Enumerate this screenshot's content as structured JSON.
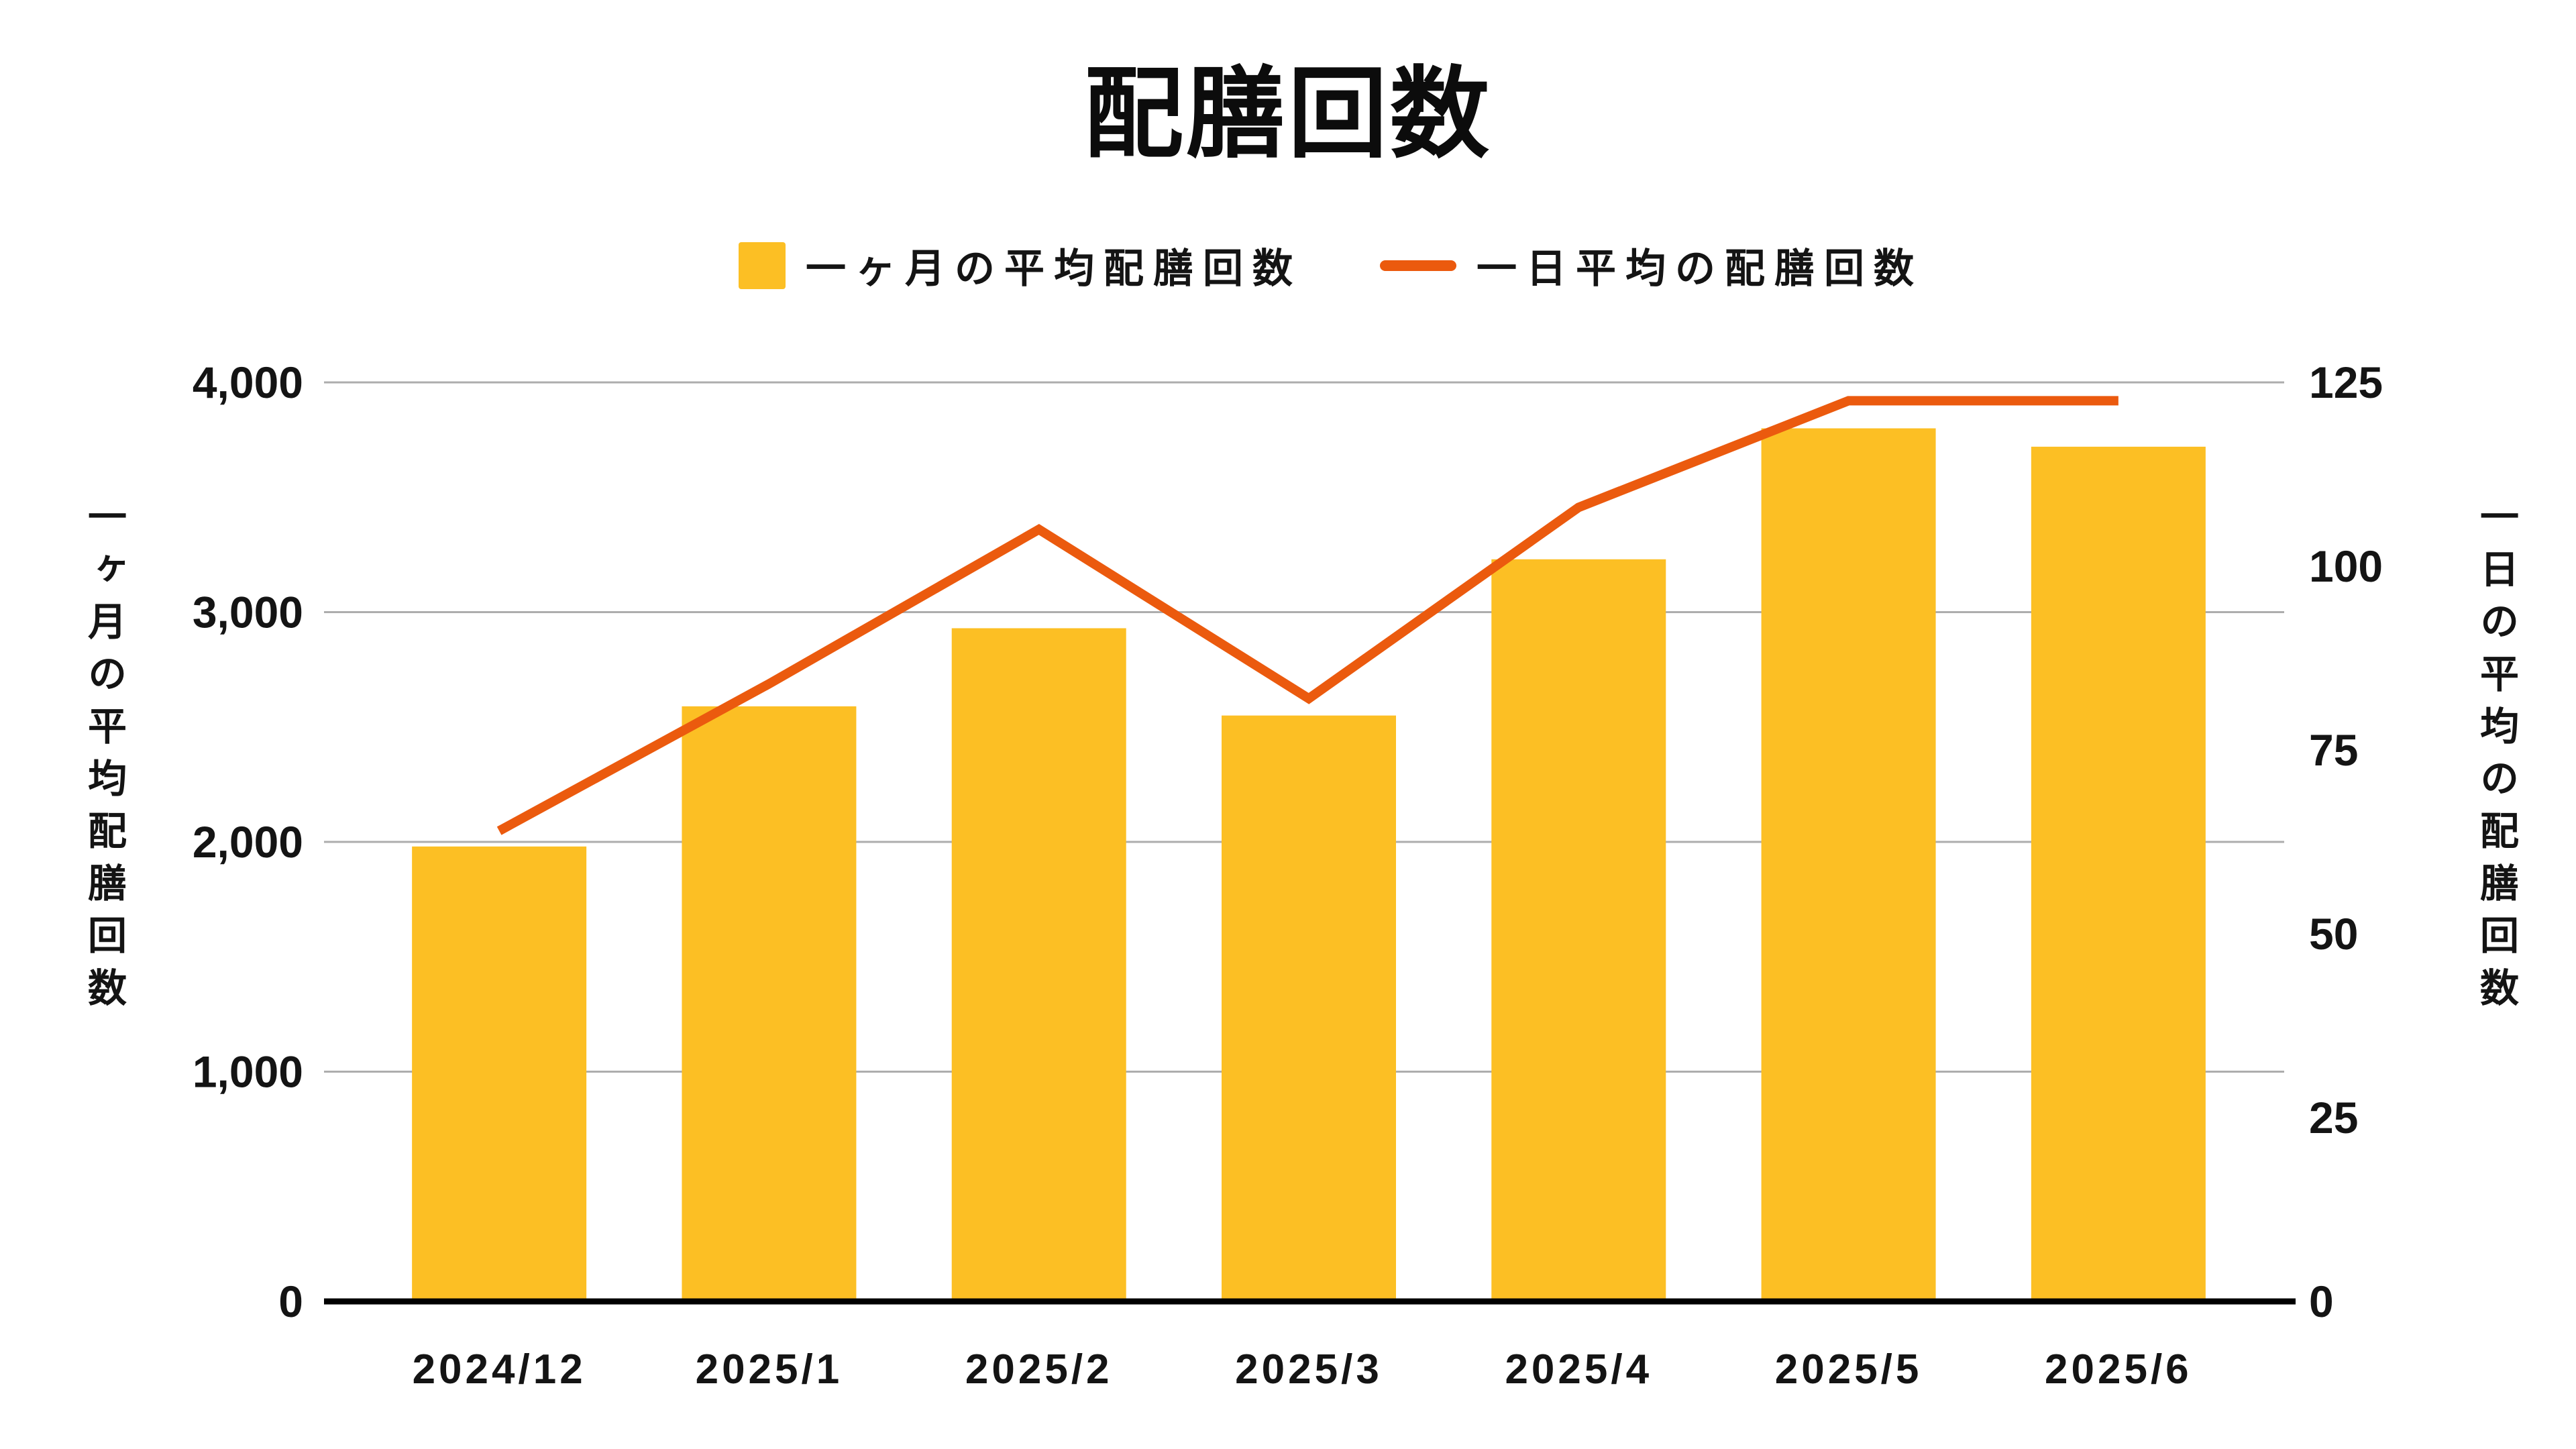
{
  "title": "配膳回数",
  "legend": {
    "bar_label": "一ヶ月の平均配膳回数",
    "line_label": "一日平均の配膳回数"
  },
  "left_axis": {
    "title": "一ヶ月の平均配膳回数",
    "tick_labels": [
      "0",
      "1,000",
      "2,000",
      "3,000",
      "4,000"
    ],
    "tick_values": [
      0,
      1000,
      2000,
      3000,
      4000
    ],
    "max": 4000
  },
  "right_axis": {
    "title": "一日の平均の配膳回数",
    "tick_labels": [
      "0",
      "25",
      "50",
      "75",
      "100",
      "125"
    ],
    "tick_values": [
      0,
      25,
      50,
      75,
      100,
      125
    ],
    "max": 125
  },
  "colors": {
    "bar": "#FCBF24",
    "line": "#EB5A0E",
    "grid": "#ADADAD",
    "axis": "#000000",
    "text": "#141414"
  },
  "chart_data": {
    "type": "bar+line",
    "categories": [
      "2024/12",
      "2025/1",
      "2025/2",
      "2025/3",
      "2025/4",
      "2025/5",
      "2025/6"
    ],
    "series": [
      {
        "name": "一ヶ月の平均配膳回数",
        "type": "bar",
        "axis": "left",
        "values": [
          1980,
          2590,
          2930,
          2550,
          3230,
          3800,
          3720
        ]
      },
      {
        "name": "一日平均の配膳回数",
        "type": "line",
        "axis": "right",
        "values": [
          64,
          84,
          105,
          82,
          108,
          122.5,
          122.5
        ]
      }
    ],
    "title": "配膳回数",
    "xlabel": "",
    "ylabel_left": "一ヶ月の平均配膳回数",
    "ylabel_right": "一日の平均の配膳回数",
    "left_ylim": [
      0,
      4000
    ],
    "right_ylim": [
      0,
      125
    ],
    "grid": "horizontal, left-axis ticks only",
    "legend_position": "top"
  }
}
